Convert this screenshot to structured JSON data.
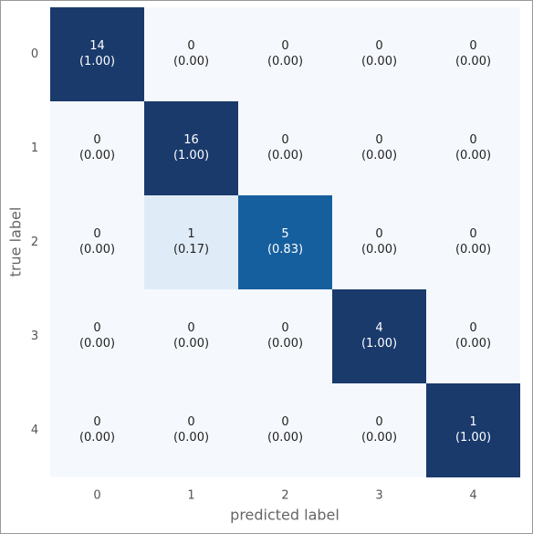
{
  "chart_data": {
    "type": "heatmap",
    "xlabel": "predicted label",
    "ylabel": "true label",
    "x_categories": [
      "0",
      "1",
      "2",
      "3",
      "4"
    ],
    "y_categories": [
      "0",
      "1",
      "2",
      "3",
      "4"
    ],
    "values": [
      [
        14,
        0,
        0,
        0,
        0
      ],
      [
        0,
        16,
        0,
        0,
        0
      ],
      [
        0,
        1,
        5,
        0,
        0
      ],
      [
        0,
        0,
        0,
        4,
        0
      ],
      [
        0,
        0,
        0,
        0,
        1
      ]
    ],
    "fractions": [
      [
        1.0,
        0.0,
        0.0,
        0.0,
        0.0
      ],
      [
        0.0,
        1.0,
        0.0,
        0.0,
        0.0
      ],
      [
        0.0,
        0.17,
        0.83,
        0.0,
        0.0
      ],
      [
        0.0,
        0.0,
        0.0,
        1.0,
        0.0
      ],
      [
        0.0,
        0.0,
        0.0,
        0.0,
        1.0
      ]
    ],
    "fraction_labels": [
      [
        "(1.00)",
        "(0.00)",
        "(0.00)",
        "(0.00)",
        "(0.00)"
      ],
      [
        "(0.00)",
        "(1.00)",
        "(0.00)",
        "(0.00)",
        "(0.00)"
      ],
      [
        "(0.00)",
        "(0.17)",
        "(0.83)",
        "(0.00)",
        "(0.00)"
      ],
      [
        "(0.00)",
        "(0.00)",
        "(0.00)",
        "(1.00)",
        "(0.00)"
      ],
      [
        "(0.00)",
        "(0.00)",
        "(0.00)",
        "(0.00)",
        "(1.00)"
      ]
    ],
    "clim": [
      0,
      1
    ],
    "cmap": [
      "#f5f9fd",
      "#dbe9f6",
      "#9ecae1",
      "#4292c6",
      "#1565a8",
      "#1a3a6c"
    ]
  }
}
